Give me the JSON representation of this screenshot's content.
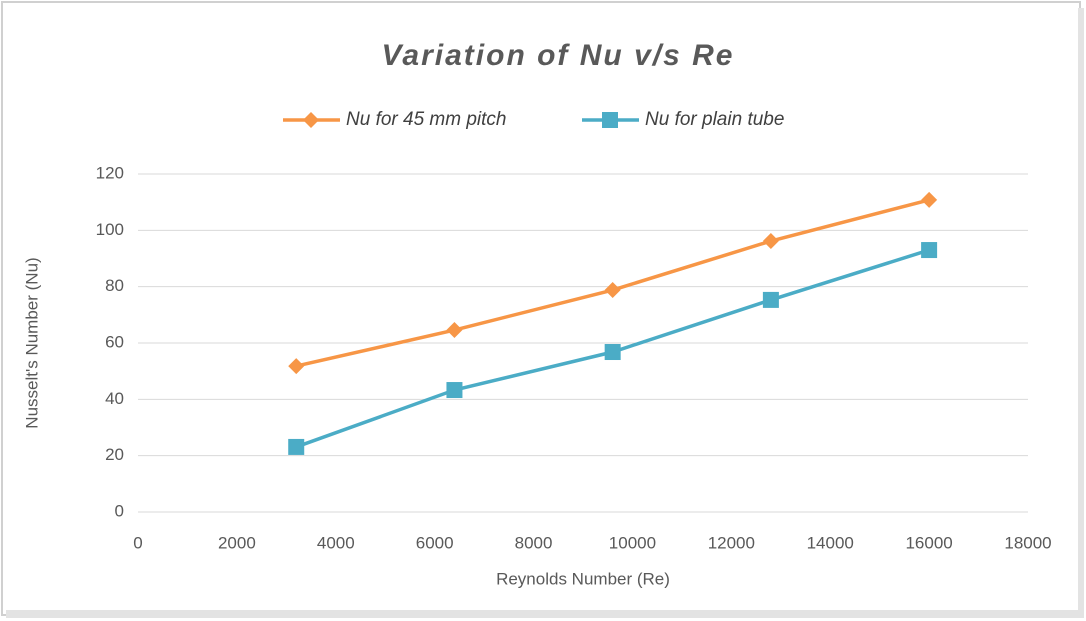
{
  "chart_data": {
    "type": "line",
    "title": "Variation of Nu v/s Re",
    "x_label": "Reynolds Number (Re)",
    "y_label": "Nusselt's Number (Nu)",
    "x": [
      3200,
      6400,
      9600,
      12800,
      16000
    ],
    "series": [
      {
        "name": "Nu for 45 mm pitch",
        "color": "#f79646",
        "marker": "diamond",
        "values": [
          51.8,
          64.6,
          78.8,
          96.2,
          110.8
        ]
      },
      {
        "name": "Nu for plain tube",
        "color": "#4bacc6",
        "marker": "square",
        "values": [
          23.1,
          43.3,
          56.8,
          75.3,
          93.0
        ]
      }
    ],
    "xlim": [
      0,
      18000
    ],
    "xticks": [
      0,
      2000,
      4000,
      6000,
      8000,
      10000,
      12000,
      14000,
      16000,
      18000
    ],
    "ylim": [
      0,
      120
    ],
    "yticks": [
      0,
      20,
      40,
      60,
      80,
      100,
      120
    ],
    "grid": true,
    "legend": "top"
  }
}
